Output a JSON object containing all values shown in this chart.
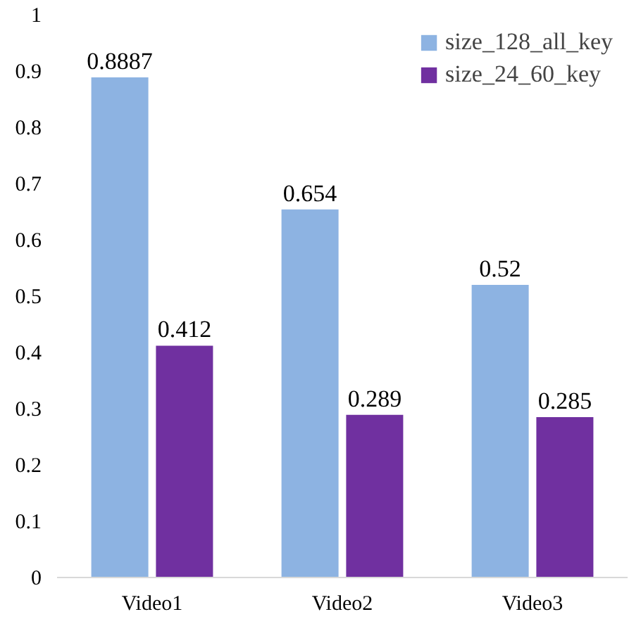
{
  "chart_data": {
    "type": "bar",
    "categories": [
      "Video1",
      "Video2",
      "Video3"
    ],
    "series": [
      {
        "name": "size_128_all_key",
        "color": "#8db3e2",
        "values": [
          0.8887,
          0.654,
          0.52
        ]
      },
      {
        "name": "size_24_60_key",
        "color": "#7030a0",
        "values": [
          0.412,
          0.289,
          0.285
        ]
      }
    ],
    "ylim": [
      0,
      1
    ],
    "yticks": [
      0,
      0.1,
      0.2,
      0.3,
      0.4,
      0.5,
      0.6,
      0.7,
      0.8,
      0.9,
      1
    ],
    "grid": false,
    "legend": "top right",
    "data_labels": true
  }
}
